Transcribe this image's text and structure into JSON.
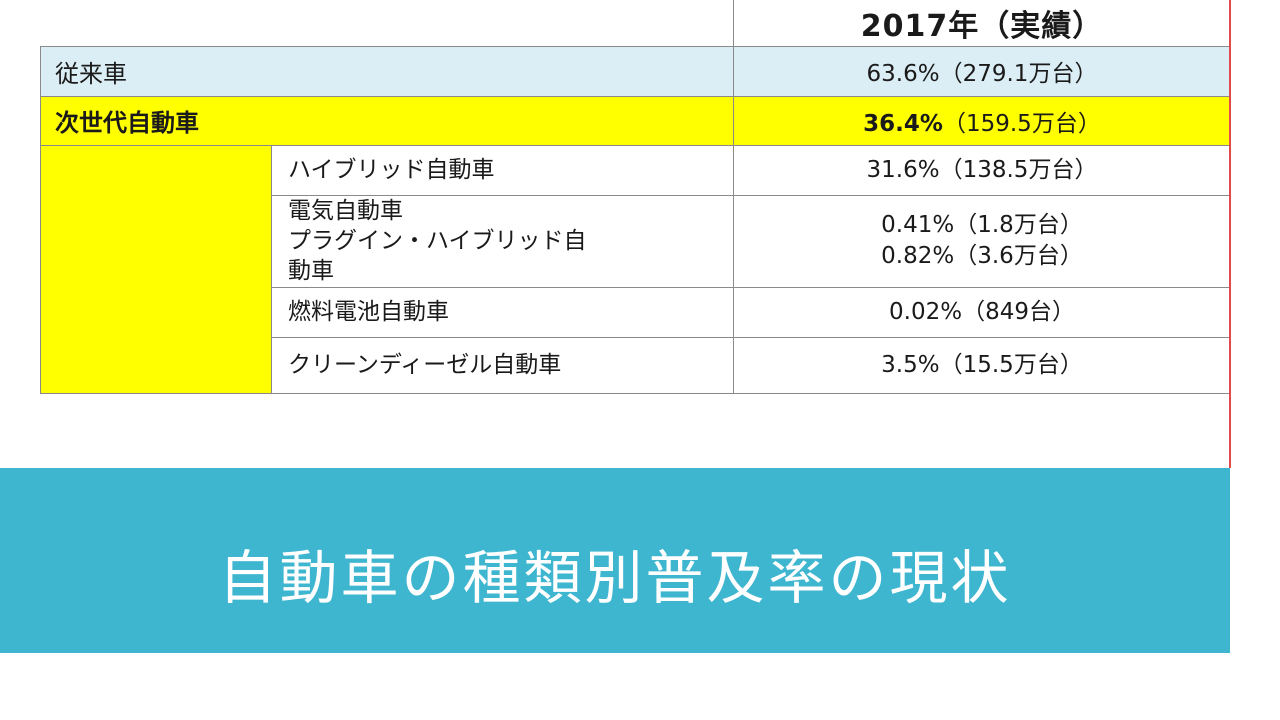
{
  "table": {
    "header": {
      "year": "2017年（実績）"
    },
    "rows": {
      "conventional": {
        "label": "従来車",
        "value": "63.6%（279.1万台）"
      },
      "next_gen": {
        "label": "次世代自動車",
        "pct": "36.4%",
        "count": "（159.5万台）"
      },
      "hybrid": {
        "label": "ハイブリッド自動車",
        "value": "31.6%（138.5万台）"
      },
      "ev_phev": {
        "label_lines": [
          "電気自動車",
          "プラグイン・ハイブリッド自",
          "動車"
        ],
        "value_lines": [
          "0.41%（1.8万台）",
          "0.82%（3.6万台）"
        ]
      },
      "fuel_cell": {
        "label": "燃料電池自動車",
        "value": "0.02%（849台）"
      },
      "clean_diesel": {
        "label": "クリーンディーゼル自動車",
        "value": "3.5%（15.5万台）"
      }
    }
  },
  "title": "自動車の種類別普及率の現状",
  "colors": {
    "banner": "#3fb6d0",
    "highlight": "#ffff00",
    "conventional_row": "#dbeef5"
  }
}
